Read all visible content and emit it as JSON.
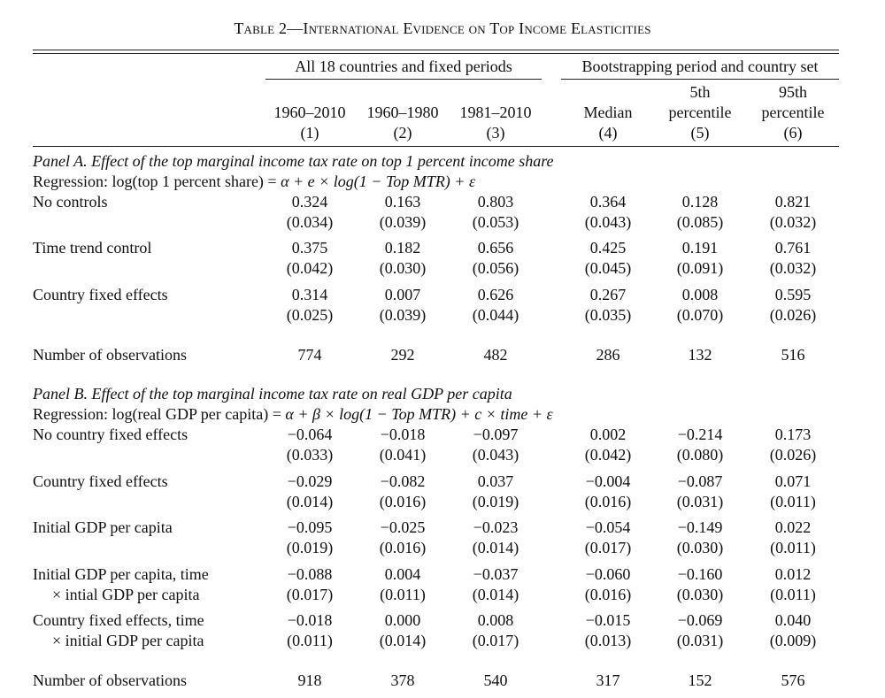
{
  "table": {
    "title": "Table 2—International Evidence on Top Income Elasticities",
    "groups": {
      "left": "All 18 countries and fixed periods",
      "right": "Bootstrapping period and country set"
    },
    "columns": [
      {
        "label": "1960–2010",
        "num": "(1)"
      },
      {
        "label": "1960–1980",
        "num": "(2)"
      },
      {
        "label": "1981–2010",
        "num": "(3)"
      },
      {
        "label": "Median",
        "num": "(4)"
      },
      {
        "label_line1": "5th",
        "label_line2": "percentile",
        "num": "(5)"
      },
      {
        "label_line1": "95th",
        "label_line2": "percentile",
        "num": "(6)"
      }
    ]
  },
  "panelA": {
    "title": "Panel A. Effect of the top marginal income tax rate on top 1 percent income share",
    "regression_prefix": "Regression: log(top 1 percent share) = ",
    "regression_math": "α + e × log(1 − Top MTR) + ε",
    "rows": [
      {
        "label": "No controls",
        "coef": [
          "0.324",
          "0.163",
          "0.803",
          "0.364",
          "0.128",
          "0.821"
        ],
        "se": [
          "(0.034)",
          "(0.039)",
          "(0.053)",
          "(0.043)",
          "(0.085)",
          "(0.032)"
        ]
      },
      {
        "label": "Time trend control",
        "coef": [
          "0.375",
          "0.182",
          "0.656",
          "0.425",
          "0.191",
          "0.761"
        ],
        "se": [
          "(0.042)",
          "(0.030)",
          "(0.056)",
          "(0.045)",
          "(0.091)",
          "(0.032)"
        ]
      },
      {
        "label": "Country fixed effects",
        "coef": [
          "0.314",
          "0.007",
          "0.626",
          "0.267",
          "0.008",
          "0.595"
        ],
        "se": [
          "(0.025)",
          "(0.039)",
          "(0.044)",
          "(0.035)",
          "(0.070)",
          "(0.026)"
        ]
      }
    ],
    "obs_label": "Number of observations",
    "obs": [
      "774",
      "292",
      "482",
      "286",
      "132",
      "516"
    ]
  },
  "panelB": {
    "title": "Panel B. Effect of the top marginal income tax rate on real GDP per capita",
    "regression_prefix": "Regression: log(real GDP per capita) = ",
    "regression_math": "α + β × log(1 − Top MTR) + c × time + ε",
    "rows": [
      {
        "label": "No country fixed effects",
        "coef": [
          "−0.064",
          "−0.018",
          "−0.097",
          "0.002",
          "−0.214",
          "0.173"
        ],
        "se": [
          "(0.033)",
          "(0.041)",
          "(0.043)",
          "(0.042)",
          "(0.080)",
          "(0.026)"
        ]
      },
      {
        "label": "Country fixed effects",
        "coef": [
          "−0.029",
          "−0.082",
          "0.037",
          "−0.004",
          "−0.087",
          "0.071"
        ],
        "se": [
          "(0.014)",
          "(0.016)",
          "(0.019)",
          "(0.016)",
          "(0.031)",
          "(0.011)"
        ]
      },
      {
        "label": "Initial GDP per capita",
        "coef": [
          "−0.095",
          "−0.025",
          "−0.023",
          "−0.054",
          "−0.149",
          "0.022"
        ],
        "se": [
          "(0.019)",
          "(0.016)",
          "(0.014)",
          "(0.017)",
          "(0.030)",
          "(0.011)"
        ]
      },
      {
        "label": "Initial GDP per capita, time",
        "label2": "× intial GDP per capita",
        "coef": [
          "−0.088",
          "0.004",
          "−0.037",
          "−0.060",
          "−0.160",
          "0.012"
        ],
        "se": [
          "(0.017)",
          "(0.011)",
          "(0.014)",
          "(0.016)",
          "(0.030)",
          "(0.011)"
        ]
      },
      {
        "label": "Country fixed effects, time",
        "label2": "× initial GDP per capita",
        "coef": [
          "−0.018",
          "0.000",
          "0.008",
          "−0.015",
          "−0.069",
          "0.040"
        ],
        "se": [
          "(0.011)",
          "(0.014)",
          "(0.017)",
          "(0.013)",
          "(0.031)",
          "(0.009)"
        ]
      }
    ],
    "obs_label": "Number of observations",
    "obs": [
      "918",
      "378",
      "540",
      "317",
      "152",
      "576"
    ]
  }
}
